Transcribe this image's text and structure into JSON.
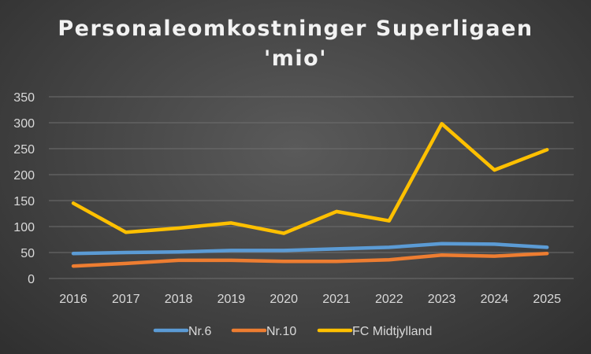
{
  "chart_data": {
    "type": "line",
    "title": "Personaleomkostninger Superligaen",
    "subtitle": "'mio'",
    "xlabel": "",
    "ylabel": "",
    "categories": [
      "2016",
      "2017",
      "2018",
      "2019",
      "2020",
      "2021",
      "2022",
      "2023",
      "2024",
      "2025"
    ],
    "ylim": [
      0,
      350
    ],
    "yticks": [
      0,
      50,
      100,
      150,
      200,
      250,
      300,
      350
    ],
    "grid": true,
    "legend": "bottom",
    "series": [
      {
        "name": "Nr.6",
        "color": "#5b9bd5",
        "values": [
          48,
          50,
          51,
          54,
          54,
          57,
          60,
          67,
          66,
          60
        ]
      },
      {
        "name": "Nr.10",
        "color": "#ed7d31",
        "values": [
          24,
          29,
          35,
          35,
          33,
          33,
          36,
          45,
          43,
          48
        ]
      },
      {
        "name": "FC Midtjylland",
        "color": "#ffc000",
        "values": [
          145,
          89,
          97,
          107,
          87,
          129,
          111,
          298,
          209,
          248
        ]
      }
    ]
  }
}
